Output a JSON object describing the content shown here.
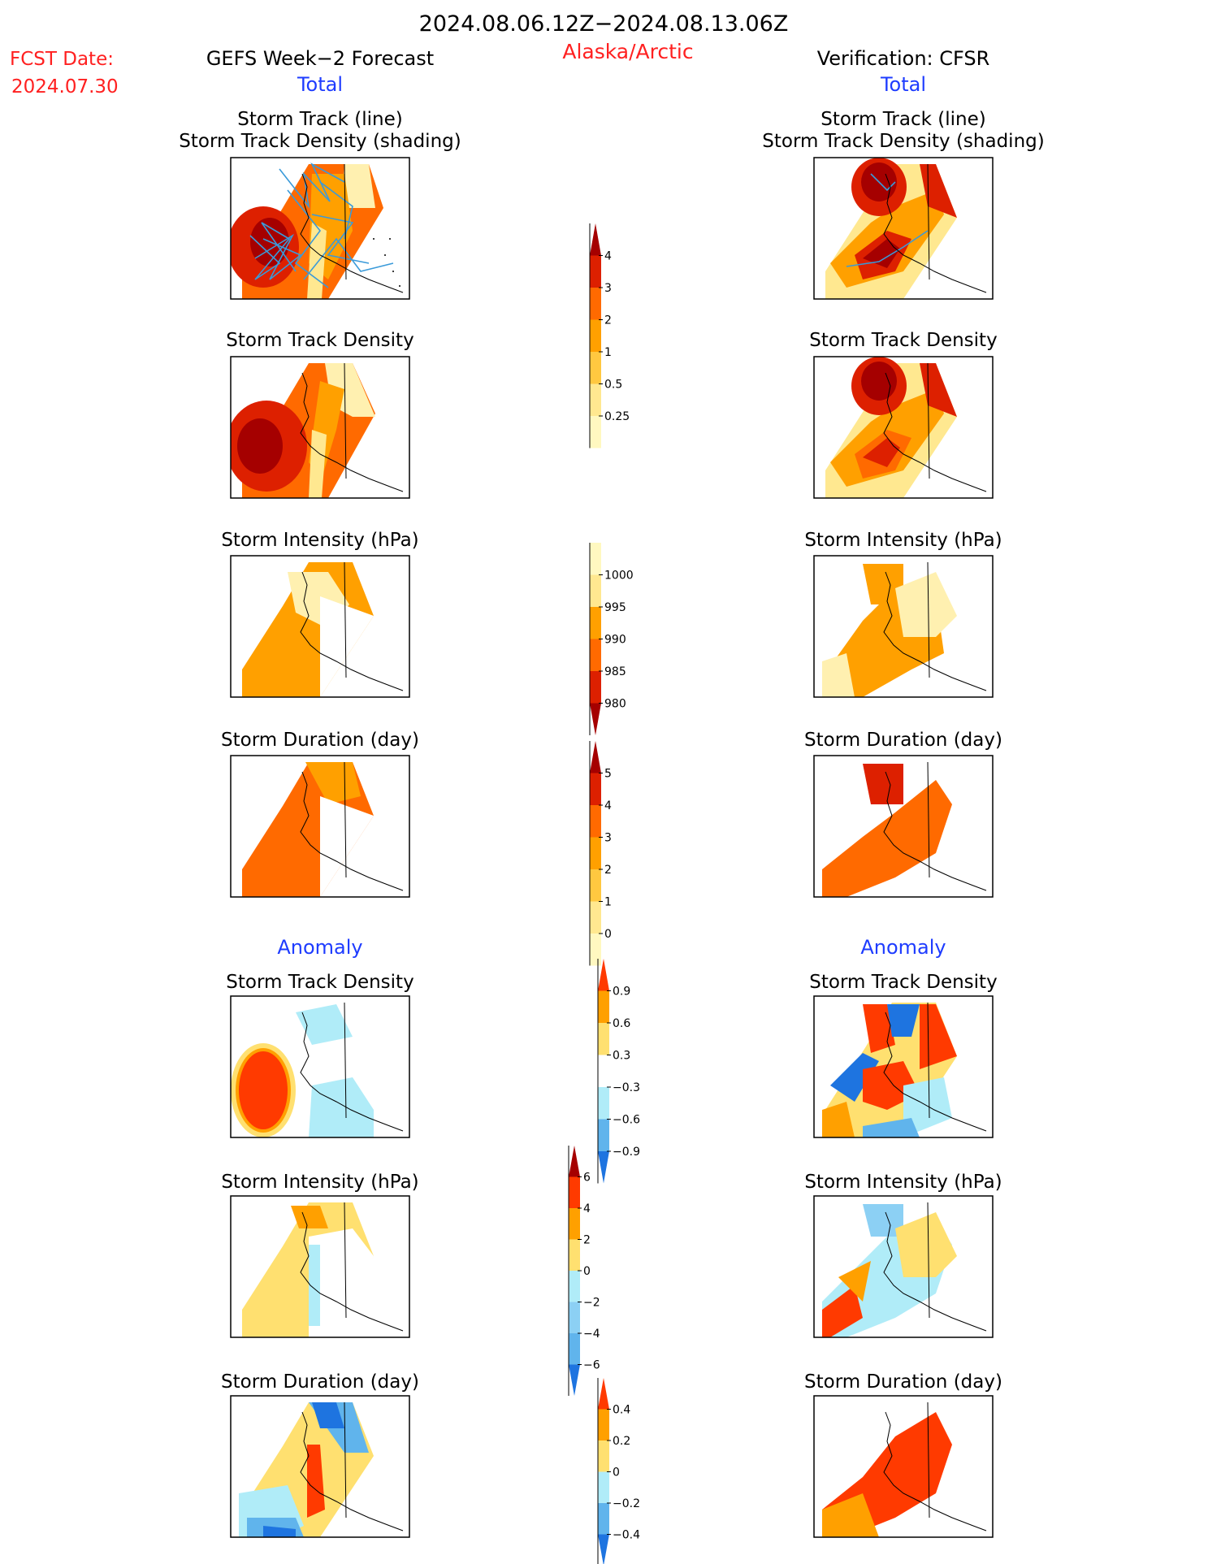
{
  "header": {
    "date_range": "2024.08.06.12Z−2024.08.13.06Z",
    "fcst_label": "FCST Date:",
    "fcst_date": "2024.07.30",
    "region": "Alaska/Arctic",
    "left_title": "GEFS Week−2 Forecast",
    "right_title": "Verification: CFSR",
    "total_label": "Total",
    "anomaly_label": "Anomaly"
  },
  "panel_titles": {
    "track_line": "Storm Track (line)",
    "track_shading": "Storm Track Density (shading)",
    "density": "Storm Track Density",
    "intensity": "Storm Intensity (hPa)",
    "duration": "Storm Duration (day)"
  },
  "colors": {
    "title_red": "#ff2020",
    "label_blue": "#1e3cff",
    "track_blue": "#3a9ad9",
    "map_line": "#000000"
  },
  "colorbars": [
    {
      "id": "density-total",
      "labels": [
        "4",
        "3",
        "2",
        "1",
        "0.5",
        "0.25"
      ],
      "colors": [
        "#a50000",
        "#dd2000",
        "#ff6a00",
        "#ffa000",
        "#ffc840",
        "#ffe890",
        "#fff8c0"
      ],
      "top_arrow": true,
      "bottom_arrow": false
    },
    {
      "id": "intensity-total",
      "labels": [
        "1000",
        "995",
        "990",
        "985",
        "980"
      ],
      "colors": [
        "#fff8c0",
        "#ffe890",
        "#ffa000",
        "#ff6a00",
        "#dd2000",
        "#a50000"
      ],
      "top_arrow": false,
      "bottom_arrow": true
    },
    {
      "id": "duration-total",
      "labels": [
        "5",
        "4",
        "3",
        "2",
        "1",
        "0"
      ],
      "colors": [
        "#a50000",
        "#dd2000",
        "#ff6a00",
        "#ffa000",
        "#ffc840",
        "#ffe890",
        "#fff8c0"
      ],
      "top_arrow": true,
      "bottom_arrow": false
    },
    {
      "id": "density-anom",
      "labels": [
        "0.9",
        "0.6",
        "0.3",
        "−0.3",
        "−0.6",
        "−0.9"
      ],
      "colors": [
        "#ff3a00",
        "#ffa000",
        "#ffe070",
        "#ffffff",
        "#b0ecf8",
        "#60b4ec",
        "#1e74e0"
      ],
      "top_arrow": true,
      "bottom_arrow": true
    },
    {
      "id": "intensity-anom",
      "labels": [
        "6",
        "4",
        "2",
        "0",
        "−2",
        "−4",
        "−6"
      ],
      "colors": [
        "#a50000",
        "#ff3a00",
        "#ffa000",
        "#ffe070",
        "#b0ecf8",
        "#8cd0f4",
        "#60b4ec",
        "#1e74e0"
      ],
      "top_arrow": true,
      "bottom_arrow": true
    },
    {
      "id": "duration-anom",
      "labels": [
        "0.4",
        "0.2",
        "0",
        "−0.2",
        "−0.4"
      ],
      "colors": [
        "#ff3a00",
        "#ffa000",
        "#ffe070",
        "#b0ecf8",
        "#60b4ec",
        "#1e74e0"
      ],
      "top_arrow": true,
      "bottom_arrow": true
    }
  ]
}
